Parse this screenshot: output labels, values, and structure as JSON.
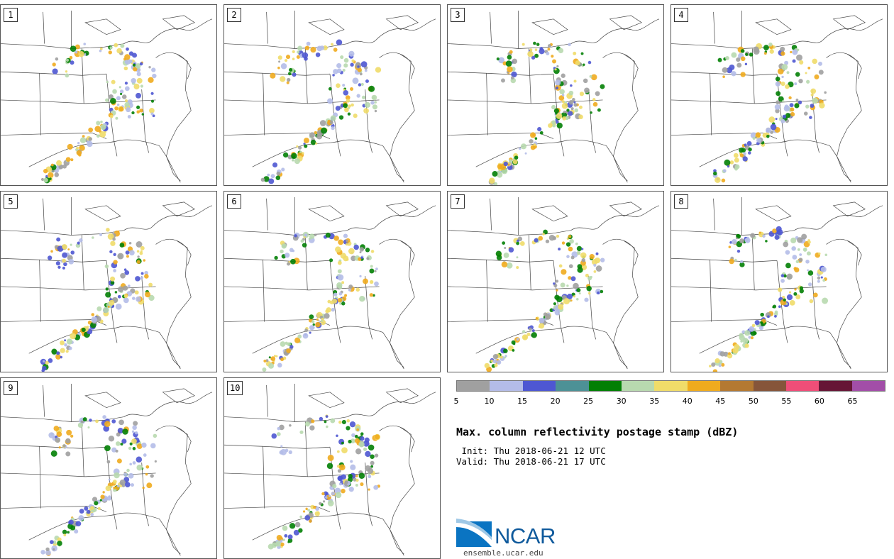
{
  "panels": [
    {
      "label": "1"
    },
    {
      "label": "2"
    },
    {
      "label": "3"
    },
    {
      "label": "4"
    },
    {
      "label": "5"
    },
    {
      "label": "6"
    },
    {
      "label": "7"
    },
    {
      "label": "8"
    },
    {
      "label": "9"
    },
    {
      "label": "10"
    }
  ],
  "colorbar": {
    "colors": [
      "#a0a0a0",
      "#b4bce8",
      "#4e57d2",
      "#4d9196",
      "#027f04",
      "#b8d9af",
      "#f0dc69",
      "#efab1e",
      "#b47932",
      "#86553a",
      "#ef4e78",
      "#661636",
      "#a24ea8"
    ],
    "tick_labels": [
      "5",
      "10",
      "15",
      "20",
      "25",
      "30",
      "35",
      "40",
      "45",
      "50",
      "55",
      "60",
      "65"
    ]
  },
  "title": "Max. column reflectivity postage stamp (dBZ)",
  "init_line": " Init: Thu 2018-06-21 12 UTC",
  "valid_line": "Valid: Thu 2018-06-21 17 UTC",
  "logo": {
    "text": "NCAR",
    "website": "ensemble.ucar.edu"
  }
}
